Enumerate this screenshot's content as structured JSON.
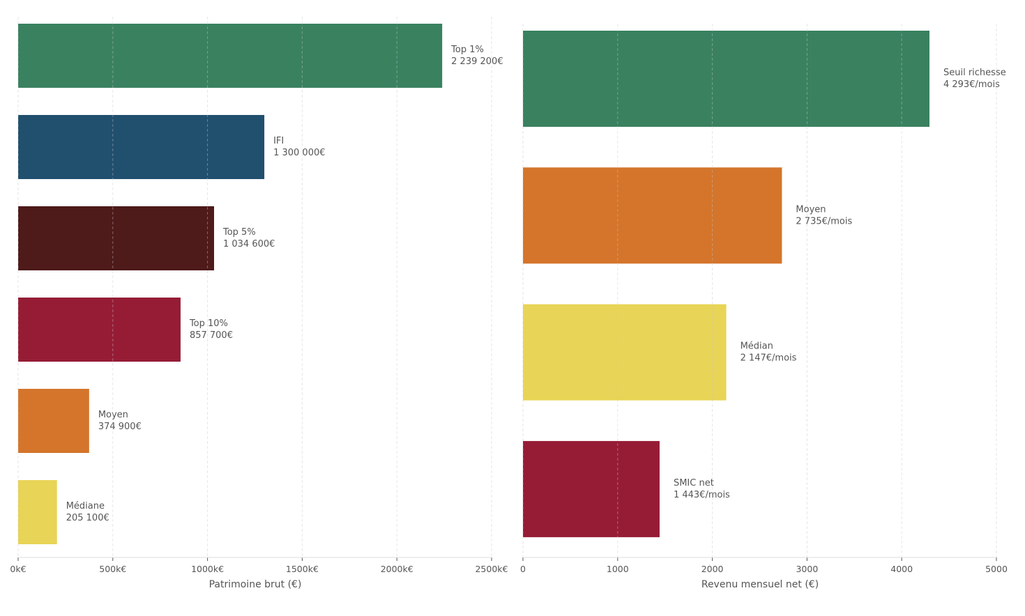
{
  "chart_data": [
    {
      "type": "bar",
      "orientation": "horizontal",
      "xlabel": "Patrimoine brut (€)",
      "xlim": [
        0,
        2500000
      ],
      "ticks": [
        0,
        500000,
        1000000,
        1500000,
        2000000,
        2500000
      ],
      "tick_labels": [
        "0k€",
        "500k€",
        "1000k€",
        "1500k€",
        "2000k€",
        "2500k€"
      ],
      "grid": true,
      "categories": [
        "Top 1%",
        "IFI",
        "Top 5%",
        "Top 10%",
        "Moyen",
        "Médiane"
      ],
      "values": [
        2239200,
        1300000,
        1034600,
        857700,
        374900,
        205100
      ],
      "data_labels": [
        "2 239 200€",
        "1 300 000€",
        "1 034 600€",
        "857 700€",
        "374 900€",
        "205 100€"
      ],
      "colors": [
        "#3a8160",
        "#214f6e",
        "#4e1a1a",
        "#961c36",
        "#d4752b",
        "#e8d456"
      ]
    },
    {
      "type": "bar",
      "orientation": "horizontal",
      "xlabel": "Revenu mensuel net (€)",
      "xlim": [
        0,
        5000
      ],
      "ticks": [
        0,
        1000,
        2000,
        3000,
        4000,
        5000
      ],
      "tick_labels": [
        "0",
        "1000",
        "2000",
        "3000",
        "4000",
        "5000"
      ],
      "grid": true,
      "categories": [
        "Seuil richesse",
        "Moyen",
        "Médian",
        "SMIC net"
      ],
      "values": [
        4293,
        2735,
        2147,
        1443
      ],
      "data_labels": [
        "4 293€/mois",
        "2 735€/mois",
        "2 147€/mois",
        "1 443€/mois"
      ],
      "colors": [
        "#3a8160",
        "#d4752b",
        "#e8d456",
        "#961c36"
      ]
    }
  ]
}
